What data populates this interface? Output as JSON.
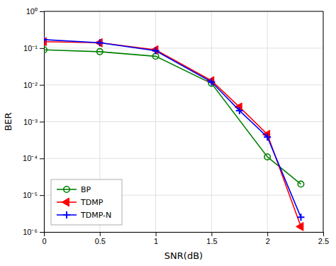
{
  "chart_data": {
    "type": "line",
    "xlabel": "SNR(dB)",
    "ylabel": "BER",
    "log": "y",
    "grid": true,
    "legend": "lower left",
    "xlim": [
      0,
      2.5
    ],
    "ylim": [
      1e-06,
      1.0
    ],
    "xticks": [
      0,
      0.5,
      1.0,
      1.5,
      2.0,
      2.5
    ],
    "yticks": [
      {
        "value": 1e-06,
        "label": "10⁻⁶"
      },
      {
        "value": 1e-05,
        "label": "10⁻⁵"
      },
      {
        "value": 0.0001,
        "label": "10⁻⁴"
      },
      {
        "value": 0.001,
        "label": "10⁻³"
      },
      {
        "value": 0.01,
        "label": "10⁻²"
      },
      {
        "value": 0.1,
        "label": "10⁻¹"
      },
      {
        "value": 1.0,
        "label": "10⁰"
      }
    ],
    "series": [
      {
        "name": "BP",
        "color": "#008000",
        "marker": "circle",
        "x": [
          0.0,
          0.5,
          1.0,
          1.5,
          2.0,
          2.3
        ],
        "values": [
          0.09,
          0.08,
          0.06,
          0.011,
          0.00011,
          2e-05
        ]
      },
      {
        "name": "TDMP",
        "color": "#FF0000",
        "marker": "triangle-left",
        "x": [
          0.0,
          0.5,
          1.0,
          1.5,
          1.75,
          2.0,
          2.3
        ],
        "values": [
          0.15,
          0.14,
          0.09,
          0.013,
          0.0025,
          0.00045,
          1.4e-06
        ]
      },
      {
        "name": "TDMP-N",
        "color": "#0000FF",
        "marker": "plus",
        "x": [
          0.0,
          0.5,
          1.0,
          1.5,
          1.75,
          2.0,
          2.3
        ],
        "values": [
          0.17,
          0.14,
          0.085,
          0.012,
          0.002,
          0.00038,
          2.5e-06
        ]
      }
    ]
  }
}
